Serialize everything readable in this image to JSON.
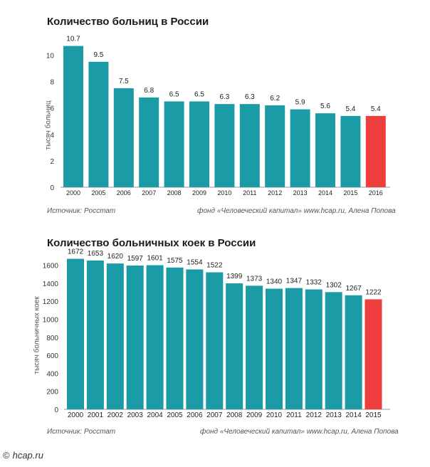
{
  "chart_data": [
    {
      "type": "bar",
      "title": "Количество больниц в России",
      "ylabel": "тысяч больниц",
      "xlabel": "",
      "ylim": [
        0,
        11
      ],
      "yticks": [
        0,
        2,
        4,
        6,
        8,
        10
      ],
      "categories": [
        "2000",
        "2005",
        "2006",
        "2007",
        "2008",
        "2009",
        "2010",
        "2011",
        "2012",
        "2013",
        "2014",
        "2015",
        "2016"
      ],
      "values": [
        10.7,
        9.5,
        7.5,
        6.8,
        6.5,
        6.5,
        6.3,
        6.3,
        6.2,
        5.9,
        5.6,
        5.4,
        5.4
      ],
      "labels": [
        "10.7",
        "9.5",
        "7.5",
        "6.8",
        "6.5",
        "6.5",
        "6.3",
        "6.3",
        "6.2",
        "5.9",
        "5.6",
        "5.4",
        "5.4"
      ],
      "highlight_index": 12,
      "source": "Источник: Росстат",
      "credit": "фонд «Человеческий капитал» www.hcap.ru, Алена Попова"
    },
    {
      "type": "bar",
      "title": "Количество больничных коек в России",
      "ylabel": "тысяч больничных коек",
      "xlabel": "",
      "ylim": [
        0,
        1700
      ],
      "yticks": [
        0,
        200,
        400,
        600,
        800,
        1000,
        1200,
        1400,
        1600
      ],
      "categories": [
        "2000",
        "2001",
        "2002",
        "2003",
        "2004",
        "2005",
        "2006",
        "2007",
        "2008",
        "2009",
        "2010",
        "2011",
        "2012",
        "2013",
        "2014",
        "2015"
      ],
      "values": [
        1672,
        1653,
        1620,
        1597,
        1601,
        1575,
        1554,
        1522,
        1399,
        1373,
        1340,
        1347,
        1332,
        1302,
        1267,
        1222
      ],
      "labels": [
        "1672",
        "1653",
        "1620",
        "1597",
        "1601",
        "1575",
        "1554",
        "1522",
        "1399",
        "1373",
        "1340",
        "1347",
        "1332",
        "1302",
        "1267",
        "1222"
      ],
      "highlight_index": 15,
      "source": "Источник: Росстат",
      "credit": "фонд «Человеческий капитал» www.hcap.ru, Алена Попова"
    }
  ],
  "colors": {
    "bar": "#1a9ba6",
    "highlight": "#ef3e3e",
    "axis": "#999999"
  },
  "watermark": {
    "symbol": "©",
    "text": "hcap.ru"
  }
}
